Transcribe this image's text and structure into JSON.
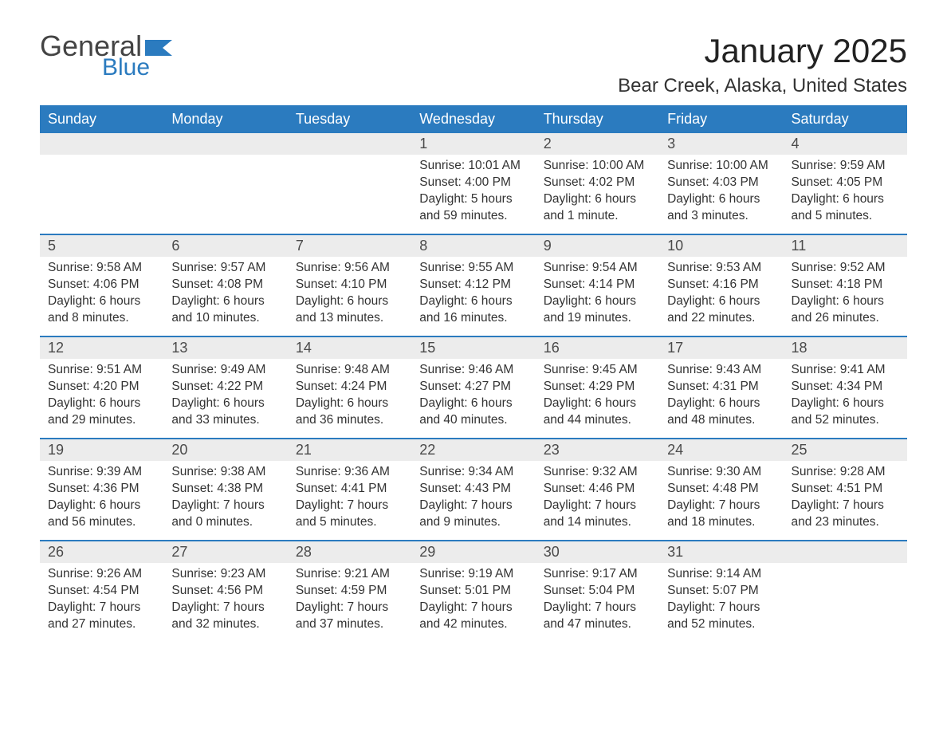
{
  "brand": {
    "part1": "General",
    "part2": "Blue",
    "flag_color": "#2b7bbf"
  },
  "title": "January 2025",
  "location": "Bear Creek, Alaska, United States",
  "colors": {
    "header_bg": "#2b7bbf",
    "header_text": "#ffffff",
    "daynum_bg": "#ececec",
    "week_border": "#2b7bbf",
    "body_text": "#333333",
    "page_bg": "#ffffff"
  },
  "typography": {
    "month_title_fontsize": 42,
    "location_fontsize": 24,
    "weekday_fontsize": 18,
    "daynum_fontsize": 18,
    "cell_fontsize": 15.5
  },
  "weekdays": [
    "Sunday",
    "Monday",
    "Tuesday",
    "Wednesday",
    "Thursday",
    "Friday",
    "Saturday"
  ],
  "weeks": [
    [
      {
        "n": "",
        "sunrise": "",
        "sunset": "",
        "dl1": "",
        "dl2": ""
      },
      {
        "n": "",
        "sunrise": "",
        "sunset": "",
        "dl1": "",
        "dl2": ""
      },
      {
        "n": "",
        "sunrise": "",
        "sunset": "",
        "dl1": "",
        "dl2": ""
      },
      {
        "n": "1",
        "sunrise": "Sunrise: 10:01 AM",
        "sunset": "Sunset: 4:00 PM",
        "dl1": "Daylight: 5 hours",
        "dl2": "and 59 minutes."
      },
      {
        "n": "2",
        "sunrise": "Sunrise: 10:00 AM",
        "sunset": "Sunset: 4:02 PM",
        "dl1": "Daylight: 6 hours",
        "dl2": "and 1 minute."
      },
      {
        "n": "3",
        "sunrise": "Sunrise: 10:00 AM",
        "sunset": "Sunset: 4:03 PM",
        "dl1": "Daylight: 6 hours",
        "dl2": "and 3 minutes."
      },
      {
        "n": "4",
        "sunrise": "Sunrise: 9:59 AM",
        "sunset": "Sunset: 4:05 PM",
        "dl1": "Daylight: 6 hours",
        "dl2": "and 5 minutes."
      }
    ],
    [
      {
        "n": "5",
        "sunrise": "Sunrise: 9:58 AM",
        "sunset": "Sunset: 4:06 PM",
        "dl1": "Daylight: 6 hours",
        "dl2": "and 8 minutes."
      },
      {
        "n": "6",
        "sunrise": "Sunrise: 9:57 AM",
        "sunset": "Sunset: 4:08 PM",
        "dl1": "Daylight: 6 hours",
        "dl2": "and 10 minutes."
      },
      {
        "n": "7",
        "sunrise": "Sunrise: 9:56 AM",
        "sunset": "Sunset: 4:10 PM",
        "dl1": "Daylight: 6 hours",
        "dl2": "and 13 minutes."
      },
      {
        "n": "8",
        "sunrise": "Sunrise: 9:55 AM",
        "sunset": "Sunset: 4:12 PM",
        "dl1": "Daylight: 6 hours",
        "dl2": "and 16 minutes."
      },
      {
        "n": "9",
        "sunrise": "Sunrise: 9:54 AM",
        "sunset": "Sunset: 4:14 PM",
        "dl1": "Daylight: 6 hours",
        "dl2": "and 19 minutes."
      },
      {
        "n": "10",
        "sunrise": "Sunrise: 9:53 AM",
        "sunset": "Sunset: 4:16 PM",
        "dl1": "Daylight: 6 hours",
        "dl2": "and 22 minutes."
      },
      {
        "n": "11",
        "sunrise": "Sunrise: 9:52 AM",
        "sunset": "Sunset: 4:18 PM",
        "dl1": "Daylight: 6 hours",
        "dl2": "and 26 minutes."
      }
    ],
    [
      {
        "n": "12",
        "sunrise": "Sunrise: 9:51 AM",
        "sunset": "Sunset: 4:20 PM",
        "dl1": "Daylight: 6 hours",
        "dl2": "and 29 minutes."
      },
      {
        "n": "13",
        "sunrise": "Sunrise: 9:49 AM",
        "sunset": "Sunset: 4:22 PM",
        "dl1": "Daylight: 6 hours",
        "dl2": "and 33 minutes."
      },
      {
        "n": "14",
        "sunrise": "Sunrise: 9:48 AM",
        "sunset": "Sunset: 4:24 PM",
        "dl1": "Daylight: 6 hours",
        "dl2": "and 36 minutes."
      },
      {
        "n": "15",
        "sunrise": "Sunrise: 9:46 AM",
        "sunset": "Sunset: 4:27 PM",
        "dl1": "Daylight: 6 hours",
        "dl2": "and 40 minutes."
      },
      {
        "n": "16",
        "sunrise": "Sunrise: 9:45 AM",
        "sunset": "Sunset: 4:29 PM",
        "dl1": "Daylight: 6 hours",
        "dl2": "and 44 minutes."
      },
      {
        "n": "17",
        "sunrise": "Sunrise: 9:43 AM",
        "sunset": "Sunset: 4:31 PM",
        "dl1": "Daylight: 6 hours",
        "dl2": "and 48 minutes."
      },
      {
        "n": "18",
        "sunrise": "Sunrise: 9:41 AM",
        "sunset": "Sunset: 4:34 PM",
        "dl1": "Daylight: 6 hours",
        "dl2": "and 52 minutes."
      }
    ],
    [
      {
        "n": "19",
        "sunrise": "Sunrise: 9:39 AM",
        "sunset": "Sunset: 4:36 PM",
        "dl1": "Daylight: 6 hours",
        "dl2": "and 56 minutes."
      },
      {
        "n": "20",
        "sunrise": "Sunrise: 9:38 AM",
        "sunset": "Sunset: 4:38 PM",
        "dl1": "Daylight: 7 hours",
        "dl2": "and 0 minutes."
      },
      {
        "n": "21",
        "sunrise": "Sunrise: 9:36 AM",
        "sunset": "Sunset: 4:41 PM",
        "dl1": "Daylight: 7 hours",
        "dl2": "and 5 minutes."
      },
      {
        "n": "22",
        "sunrise": "Sunrise: 9:34 AM",
        "sunset": "Sunset: 4:43 PM",
        "dl1": "Daylight: 7 hours",
        "dl2": "and 9 minutes."
      },
      {
        "n": "23",
        "sunrise": "Sunrise: 9:32 AM",
        "sunset": "Sunset: 4:46 PM",
        "dl1": "Daylight: 7 hours",
        "dl2": "and 14 minutes."
      },
      {
        "n": "24",
        "sunrise": "Sunrise: 9:30 AM",
        "sunset": "Sunset: 4:48 PM",
        "dl1": "Daylight: 7 hours",
        "dl2": "and 18 minutes."
      },
      {
        "n": "25",
        "sunrise": "Sunrise: 9:28 AM",
        "sunset": "Sunset: 4:51 PM",
        "dl1": "Daylight: 7 hours",
        "dl2": "and 23 minutes."
      }
    ],
    [
      {
        "n": "26",
        "sunrise": "Sunrise: 9:26 AM",
        "sunset": "Sunset: 4:54 PM",
        "dl1": "Daylight: 7 hours",
        "dl2": "and 27 minutes."
      },
      {
        "n": "27",
        "sunrise": "Sunrise: 9:23 AM",
        "sunset": "Sunset: 4:56 PM",
        "dl1": "Daylight: 7 hours",
        "dl2": "and 32 minutes."
      },
      {
        "n": "28",
        "sunrise": "Sunrise: 9:21 AM",
        "sunset": "Sunset: 4:59 PM",
        "dl1": "Daylight: 7 hours",
        "dl2": "and 37 minutes."
      },
      {
        "n": "29",
        "sunrise": "Sunrise: 9:19 AM",
        "sunset": "Sunset: 5:01 PM",
        "dl1": "Daylight: 7 hours",
        "dl2": "and 42 minutes."
      },
      {
        "n": "30",
        "sunrise": "Sunrise: 9:17 AM",
        "sunset": "Sunset: 5:04 PM",
        "dl1": "Daylight: 7 hours",
        "dl2": "and 47 minutes."
      },
      {
        "n": "31",
        "sunrise": "Sunrise: 9:14 AM",
        "sunset": "Sunset: 5:07 PM",
        "dl1": "Daylight: 7 hours",
        "dl2": "and 52 minutes."
      },
      {
        "n": "",
        "sunrise": "",
        "sunset": "",
        "dl1": "",
        "dl2": ""
      }
    ]
  ]
}
